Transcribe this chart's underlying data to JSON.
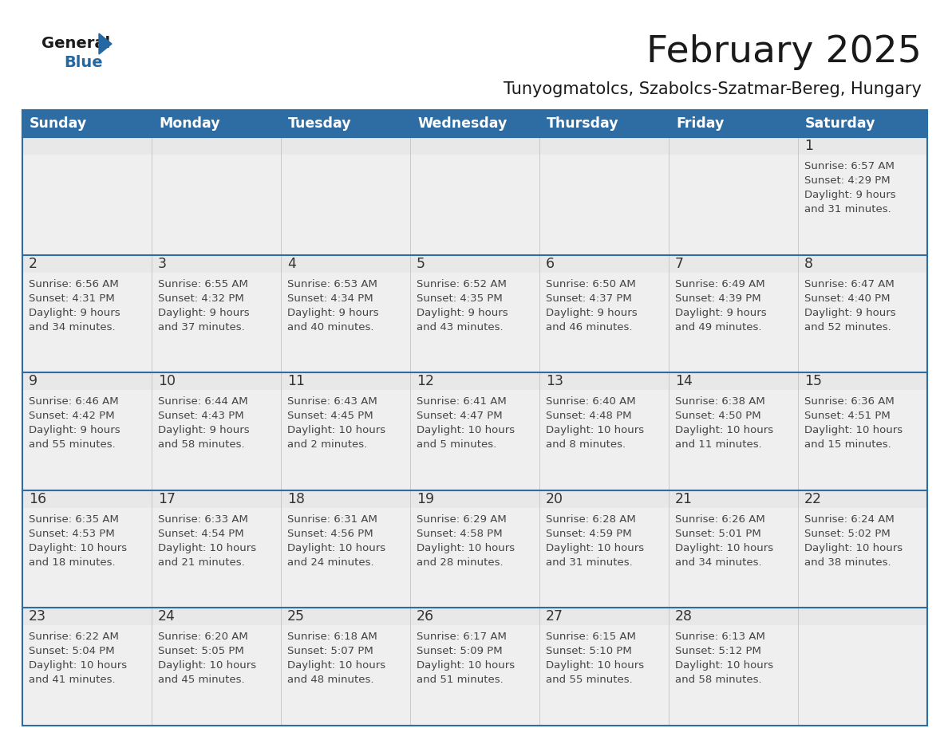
{
  "title": "February 2025",
  "subtitle": "Tunyogmatolcs, Szabolcs-Szatmar-Bereg, Hungary",
  "days_of_week": [
    "Sunday",
    "Monday",
    "Tuesday",
    "Wednesday",
    "Thursday",
    "Friday",
    "Saturday"
  ],
  "header_bg": "#2E6DA4",
  "header_text": "#FFFFFF",
  "cell_bg": "#EFEFEF",
  "cell_bg_alt": "#FFFFFF",
  "border_color": "#2E6DA4",
  "text_color": "#444444",
  "day_number_color": "#333333",
  "calendar_data": [
    [
      null,
      null,
      null,
      null,
      null,
      null,
      {
        "day": 1,
        "sunrise": "6:57 AM",
        "sunset": "4:29 PM",
        "daylight": "9 hours",
        "daylight2": "and 31 minutes."
      }
    ],
    [
      {
        "day": 2,
        "sunrise": "6:56 AM",
        "sunset": "4:31 PM",
        "daylight": "9 hours",
        "daylight2": "and 34 minutes."
      },
      {
        "day": 3,
        "sunrise": "6:55 AM",
        "sunset": "4:32 PM",
        "daylight": "9 hours",
        "daylight2": "and 37 minutes."
      },
      {
        "day": 4,
        "sunrise": "6:53 AM",
        "sunset": "4:34 PM",
        "daylight": "9 hours",
        "daylight2": "and 40 minutes."
      },
      {
        "day": 5,
        "sunrise": "6:52 AM",
        "sunset": "4:35 PM",
        "daylight": "9 hours",
        "daylight2": "and 43 minutes."
      },
      {
        "day": 6,
        "sunrise": "6:50 AM",
        "sunset": "4:37 PM",
        "daylight": "9 hours",
        "daylight2": "and 46 minutes."
      },
      {
        "day": 7,
        "sunrise": "6:49 AM",
        "sunset": "4:39 PM",
        "daylight": "9 hours",
        "daylight2": "and 49 minutes."
      },
      {
        "day": 8,
        "sunrise": "6:47 AM",
        "sunset": "4:40 PM",
        "daylight": "9 hours",
        "daylight2": "and 52 minutes."
      }
    ],
    [
      {
        "day": 9,
        "sunrise": "6:46 AM",
        "sunset": "4:42 PM",
        "daylight": "9 hours",
        "daylight2": "and 55 minutes."
      },
      {
        "day": 10,
        "sunrise": "6:44 AM",
        "sunset": "4:43 PM",
        "daylight": "9 hours",
        "daylight2": "and 58 minutes."
      },
      {
        "day": 11,
        "sunrise": "6:43 AM",
        "sunset": "4:45 PM",
        "daylight": "10 hours",
        "daylight2": "and 2 minutes."
      },
      {
        "day": 12,
        "sunrise": "6:41 AM",
        "sunset": "4:47 PM",
        "daylight": "10 hours",
        "daylight2": "and 5 minutes."
      },
      {
        "day": 13,
        "sunrise": "6:40 AM",
        "sunset": "4:48 PM",
        "daylight": "10 hours",
        "daylight2": "and 8 minutes."
      },
      {
        "day": 14,
        "sunrise": "6:38 AM",
        "sunset": "4:50 PM",
        "daylight": "10 hours",
        "daylight2": "and 11 minutes."
      },
      {
        "day": 15,
        "sunrise": "6:36 AM",
        "sunset": "4:51 PM",
        "daylight": "10 hours",
        "daylight2": "and 15 minutes."
      }
    ],
    [
      {
        "day": 16,
        "sunrise": "6:35 AM",
        "sunset": "4:53 PM",
        "daylight": "10 hours",
        "daylight2": "and 18 minutes."
      },
      {
        "day": 17,
        "sunrise": "6:33 AM",
        "sunset": "4:54 PM",
        "daylight": "10 hours",
        "daylight2": "and 21 minutes."
      },
      {
        "day": 18,
        "sunrise": "6:31 AM",
        "sunset": "4:56 PM",
        "daylight": "10 hours",
        "daylight2": "and 24 minutes."
      },
      {
        "day": 19,
        "sunrise": "6:29 AM",
        "sunset": "4:58 PM",
        "daylight": "10 hours",
        "daylight2": "and 28 minutes."
      },
      {
        "day": 20,
        "sunrise": "6:28 AM",
        "sunset": "4:59 PM",
        "daylight": "10 hours",
        "daylight2": "and 31 minutes."
      },
      {
        "day": 21,
        "sunrise": "6:26 AM",
        "sunset": "5:01 PM",
        "daylight": "10 hours",
        "daylight2": "and 34 minutes."
      },
      {
        "day": 22,
        "sunrise": "6:24 AM",
        "sunset": "5:02 PM",
        "daylight": "10 hours",
        "daylight2": "and 38 minutes."
      }
    ],
    [
      {
        "day": 23,
        "sunrise": "6:22 AM",
        "sunset": "5:04 PM",
        "daylight": "10 hours",
        "daylight2": "and 41 minutes."
      },
      {
        "day": 24,
        "sunrise": "6:20 AM",
        "sunset": "5:05 PM",
        "daylight": "10 hours",
        "daylight2": "and 45 minutes."
      },
      {
        "day": 25,
        "sunrise": "6:18 AM",
        "sunset": "5:07 PM",
        "daylight": "10 hours",
        "daylight2": "and 48 minutes."
      },
      {
        "day": 26,
        "sunrise": "6:17 AM",
        "sunset": "5:09 PM",
        "daylight": "10 hours",
        "daylight2": "and 51 minutes."
      },
      {
        "day": 27,
        "sunrise": "6:15 AM",
        "sunset": "5:10 PM",
        "daylight": "10 hours",
        "daylight2": "and 55 minutes."
      },
      {
        "day": 28,
        "sunrise": "6:13 AM",
        "sunset": "5:12 PM",
        "daylight": "10 hours",
        "daylight2": "and 58 minutes."
      },
      null
    ]
  ],
  "logo_general_color": "#1a1a1a",
  "logo_blue_color": "#2368A2",
  "logo_triangle_color": "#2368A2"
}
